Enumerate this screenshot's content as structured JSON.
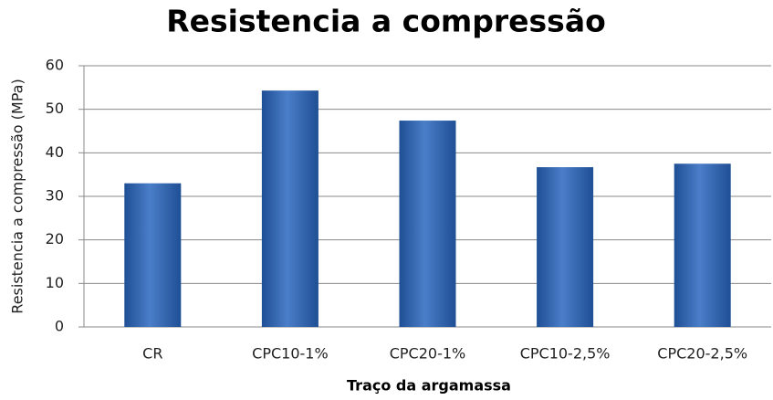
{
  "chart_data": {
    "type": "bar",
    "title": "Resistencia a compressão",
    "x_label": "Traço da argamassa",
    "y_label": "Resistencia a compressão (MPa)",
    "categories": [
      "CR",
      "CPC10-1%",
      "CPC20-1%",
      "CPC10-2,5%",
      "CPC20-2,5%"
    ],
    "values": [
      33,
      54.3,
      47.4,
      36.7,
      37.5
    ],
    "color": "#4a7ec8",
    "ylim": [
      0,
      60
    ],
    "yticks": [
      0,
      10,
      20,
      30,
      40,
      50,
      60
    ],
    "grid": true
  }
}
